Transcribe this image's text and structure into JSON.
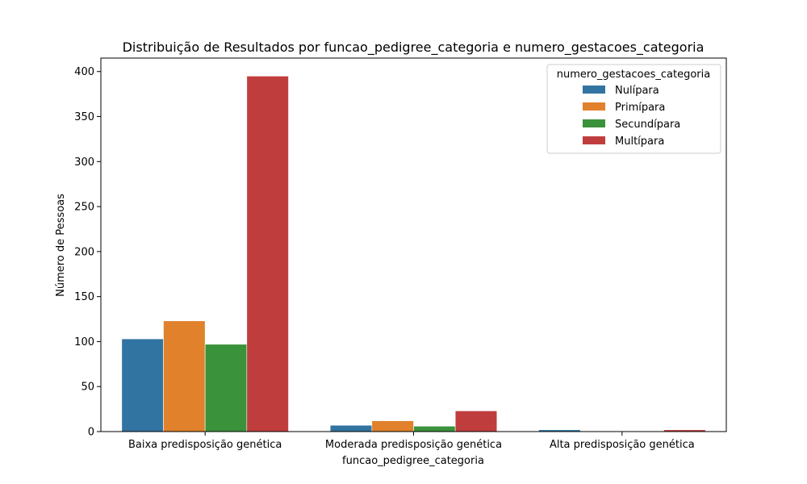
{
  "chart_data": {
    "type": "bar",
    "title": "Distribuição de Resultados por funcao_pedigree_categoria e numero_gestacoes_categoria",
    "xlabel": "funcao_pedigree_categoria",
    "ylabel": "Número de Pessoas",
    "ylim": [
      0,
      415
    ],
    "yticks": [
      0,
      50,
      100,
      150,
      200,
      250,
      300,
      350,
      400
    ],
    "categories": [
      "Baixa predisposição genética",
      "Moderada predisposição genética",
      "Alta predisposição genética"
    ],
    "legend_title": "numero_gestacoes_categoria",
    "legend_position": "top-right",
    "grid": false,
    "series": [
      {
        "name": "Nulípara",
        "color": "#3274a1",
        "values": [
          103,
          7,
          2
        ]
      },
      {
        "name": "Primípara",
        "color": "#e1812c",
        "values": [
          123,
          12,
          0
        ]
      },
      {
        "name": "Secundípara",
        "color": "#3a923a",
        "values": [
          97,
          6,
          0
        ]
      },
      {
        "name": "Multípara",
        "color": "#c03d3e",
        "values": [
          395,
          23,
          2
        ]
      }
    ]
  }
}
